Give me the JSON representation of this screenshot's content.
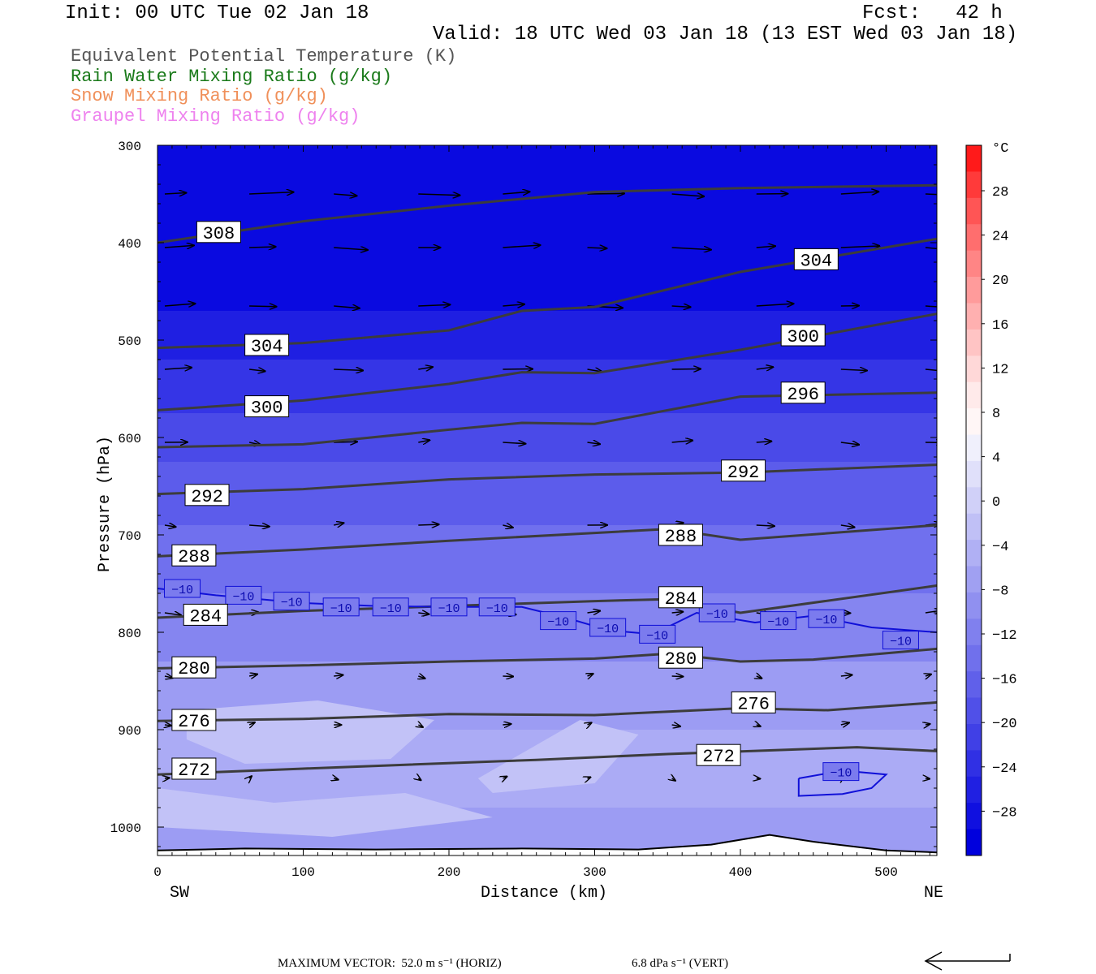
{
  "header": {
    "init": "Init: 00 UTC Tue 02 Jan 18",
    "fcst": "Fcst:   42 h",
    "valid": "Valid: 18 UTC Wed 03 Jan 18 (13 EST Wed 03 Jan 18)"
  },
  "legend": [
    {
      "label": "Equivalent Potential Temperature (K)",
      "color": "#555555"
    },
    {
      "label": "Rain Water Mixing Ratio (g/kg)",
      "color": "#1a7a1a"
    },
    {
      "label": "Snow Mixing Ratio (g/kg)",
      "color": "#f0905a"
    },
    {
      "label": "Graupel Mixing Ratio (g/kg)",
      "color": "#ee82ee"
    }
  ],
  "chart_data": {
    "type": "cross-section",
    "xlabel": "Distance (km)",
    "ylabel": "Pressure (hPa)",
    "xlim": [
      0,
      535
    ],
    "ylim": [
      1030,
      300
    ],
    "y_scale": "linear",
    "x_ticks": [
      0,
      100,
      200,
      300,
      400,
      500
    ],
    "y_ticks": [
      300,
      400,
      500,
      600,
      700,
      800,
      900,
      1000
    ],
    "left_end_label": "SW",
    "right_end_label": "NE",
    "colorbar": {
      "unit": "°C",
      "ticks": [
        "28",
        "24",
        "20",
        "16",
        "12",
        "8",
        "4",
        "0",
        "−4",
        "−8",
        "−12",
        "−16",
        "−20",
        "−24",
        "−28"
      ],
      "colors": [
        "#ff1a1a",
        "#ff3a3a",
        "#ff5555",
        "#ff6e6e",
        "#ff8585",
        "#ff9b9b",
        "#ffb0b0",
        "#ffc4c4",
        "#ffd8d8",
        "#ffeaea",
        "#fff6f6",
        "#f0f0fc",
        "#e0e0fa",
        "#d0d0f8",
        "#c0c0f6",
        "#b0b0f4",
        "#a0a0f2",
        "#9090f0",
        "#8080ee",
        "#7070ec",
        "#6060ea",
        "#5050e8",
        "#4040e6",
        "#3030e4",
        "#2020e2",
        "#1010e0",
        "#0000dd"
      ]
    },
    "theta_e_contours": [
      {
        "value": "308",
        "points": [
          [
            0,
            400
          ],
          [
            100,
            378
          ],
          [
            200,
            362
          ],
          [
            300,
            348
          ],
          [
            400,
            344
          ],
          [
            535,
            341
          ]
        ]
      },
      {
        "value": "304",
        "points": [
          [
            0,
            508
          ],
          [
            100,
            503
          ],
          [
            200,
            490
          ],
          [
            250,
            470
          ],
          [
            300,
            466
          ],
          [
            400,
            430
          ],
          [
            535,
            396
          ]
        ]
      },
      {
        "value": "300",
        "points": [
          [
            0,
            572
          ],
          [
            100,
            562
          ],
          [
            200,
            545
          ],
          [
            250,
            533
          ],
          [
            300,
            534
          ],
          [
            400,
            510
          ],
          [
            535,
            473
          ]
        ]
      },
      {
        "value": "296",
        "points": [
          [
            0,
            610
          ],
          [
            100,
            607
          ],
          [
            200,
            592
          ],
          [
            250,
            585
          ],
          [
            300,
            586
          ],
          [
            400,
            558
          ],
          [
            535,
            554
          ]
        ]
      },
      {
        "value": "292",
        "points": [
          [
            0,
            658
          ],
          [
            100,
            653
          ],
          [
            200,
            643
          ],
          [
            300,
            638
          ],
          [
            400,
            636
          ],
          [
            535,
            628
          ]
        ]
      },
      {
        "value": "288",
        "points": [
          [
            0,
            722
          ],
          [
            100,
            715
          ],
          [
            200,
            706
          ],
          [
            300,
            698
          ],
          [
            350,
            694
          ],
          [
            400,
            705
          ],
          [
            535,
            690
          ]
        ]
      },
      {
        "value": "284",
        "points": [
          [
            0,
            785
          ],
          [
            100,
            778
          ],
          [
            200,
            773
          ],
          [
            300,
            768
          ],
          [
            350,
            766
          ],
          [
            400,
            780
          ],
          [
            535,
            752
          ]
        ]
      },
      {
        "value": "280",
        "points": [
          [
            0,
            837
          ],
          [
            100,
            834
          ],
          [
            200,
            830
          ],
          [
            300,
            827
          ],
          [
            350,
            822
          ],
          [
            400,
            830
          ],
          [
            450,
            828
          ],
          [
            535,
            817
          ]
        ]
      },
      {
        "value": "276",
        "points": [
          [
            0,
            891
          ],
          [
            100,
            889
          ],
          [
            200,
            884
          ],
          [
            300,
            885
          ],
          [
            400,
            878
          ],
          [
            460,
            880
          ],
          [
            535,
            872
          ]
        ]
      },
      {
        "value": "272",
        "points": [
          [
            0,
            946
          ],
          [
            100,
            940
          ],
          [
            170,
            936
          ],
          [
            260,
            931
          ],
          [
            350,
            925
          ],
          [
            480,
            918
          ],
          [
            535,
            922
          ]
        ]
      }
    ],
    "theta_e_labels": [
      {
        "value": "308",
        "x": 42,
        "p": 389
      },
      {
        "value": "304",
        "x": 75,
        "p": 505
      },
      {
        "value": "300",
        "x": 75,
        "p": 568
      },
      {
        "value": "292",
        "x": 34,
        "p": 659
      },
      {
        "value": "288",
        "x": 25,
        "p": 721
      },
      {
        "value": "284",
        "x": 33,
        "p": 782
      },
      {
        "value": "280",
        "x": 25,
        "p": 836
      },
      {
        "value": "276",
        "x": 25,
        "p": 890
      },
      {
        "value": "272",
        "x": 25,
        "p": 940
      },
      {
        "value": "304",
        "x": 452,
        "p": 417
      },
      {
        "value": "300",
        "x": 443,
        "p": 495
      },
      {
        "value": "296",
        "x": 443,
        "p": 554
      },
      {
        "value": "292",
        "x": 402,
        "p": 634
      },
      {
        "value": "288",
        "x": 359,
        "p": 700
      },
      {
        "value": "284",
        "x": 359,
        "p": 764
      },
      {
        "value": "280",
        "x": 359,
        "p": 826
      },
      {
        "value": "276",
        "x": 409,
        "p": 872
      },
      {
        "value": "272",
        "x": 385,
        "p": 926
      }
    ],
    "temperature_contours": [
      {
        "value": "−10",
        "points": [
          [
            0,
            755
          ],
          [
            40,
            762
          ],
          [
            100,
            770
          ],
          [
            150,
            773
          ],
          [
            200,
            774
          ],
          [
            250,
            774
          ],
          [
            280,
            785
          ],
          [
            310,
            798
          ],
          [
            340,
            802
          ],
          [
            370,
            780
          ],
          [
            410,
            790
          ],
          [
            450,
            783
          ],
          [
            490,
            795
          ],
          [
            535,
            800
          ]
        ],
        "labels": [
          [
            17,
            755
          ],
          [
            59,
            762
          ],
          [
            92,
            768
          ],
          [
            126,
            774
          ],
          [
            160,
            774
          ],
          [
            200,
            774
          ],
          [
            233,
            774
          ],
          [
            275,
            788
          ],
          [
            309,
            795
          ],
          [
            343,
            802
          ],
          [
            384,
            780
          ],
          [
            426,
            788
          ],
          [
            459,
            786
          ],
          [
            510,
            808
          ]
        ]
      },
      {
        "value": "−10",
        "closed": true,
        "points": [
          [
            440,
            950
          ],
          [
            470,
            942
          ],
          [
            500,
            946
          ],
          [
            490,
            960
          ],
          [
            470,
            966
          ],
          [
            440,
            968
          ],
          [
            440,
            950
          ]
        ],
        "labels": [
          [
            469,
            943
          ]
        ]
      }
    ],
    "wind_arrows_note": "horizontal and vertical circulation vectors",
    "max_vector_horiz": "MAXIMUM VECTOR:  52.0 m s⁻¹ (HORIZ)",
    "max_vector_vert": "6.8 dPa s⁻¹ (VERT)"
  }
}
